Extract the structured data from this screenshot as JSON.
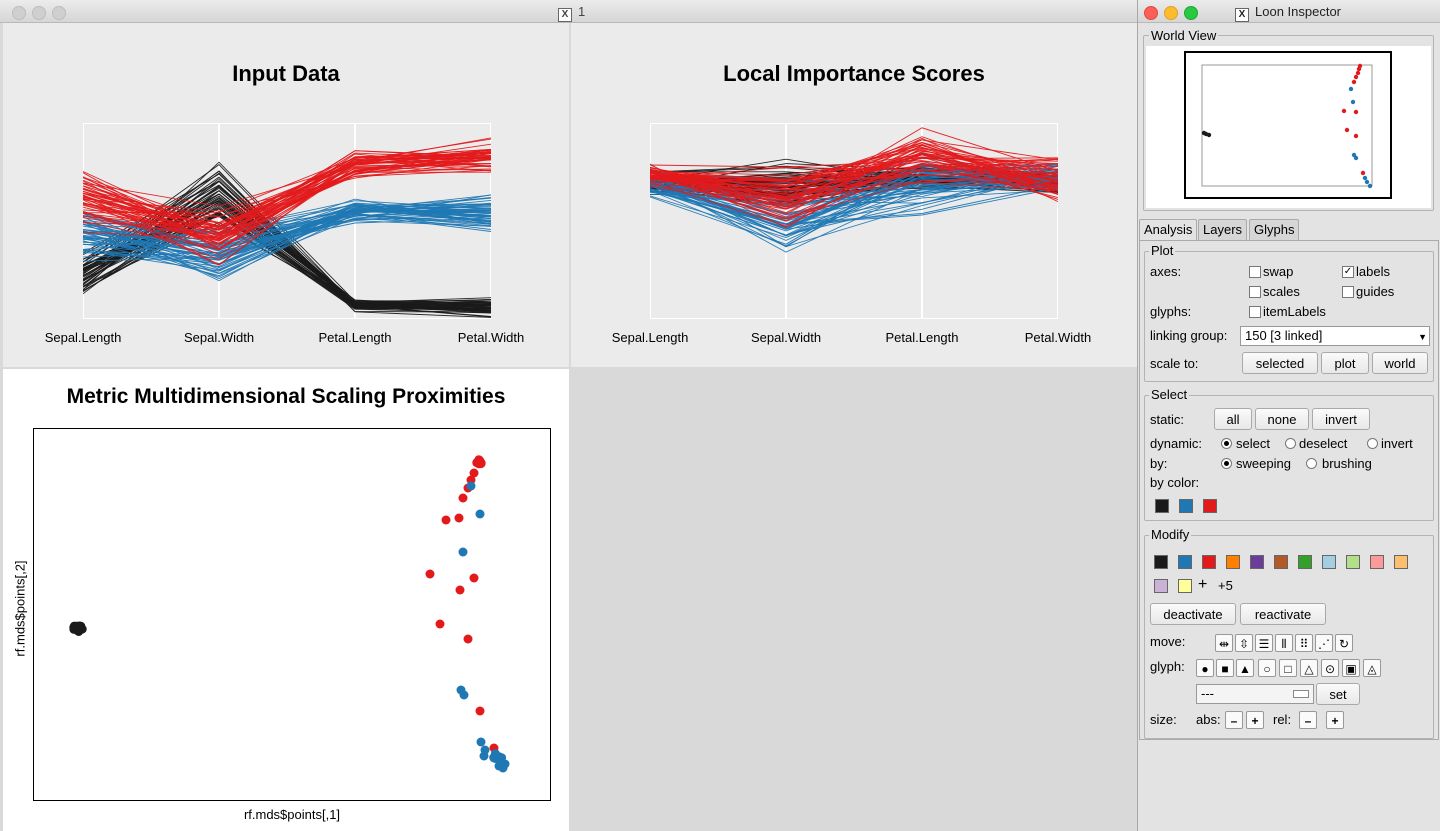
{
  "main_window": {
    "title": "1"
  },
  "plots": {
    "input": {
      "title": "Input Data",
      "axes": [
        "Sepal.Length",
        "Sepal.Width",
        "Petal.Length",
        "Petal.Width"
      ]
    },
    "importance": {
      "title": "Local Importance Scores",
      "axes": [
        "Sepal.Length",
        "Sepal.Width",
        "Petal.Length",
        "Petal.Width"
      ]
    },
    "mds": {
      "title": "Metric Multidimensional Scaling Proximities",
      "xlabel": "rf.mds$points[,1]",
      "ylabel": "rf.mds$points[,2]"
    }
  },
  "colors": {
    "black": "#1a1a1a",
    "blue": "#1f78b4",
    "red": "#e31a1c"
  },
  "inspector": {
    "title": "Loon Inspector",
    "world_view_label": "World View",
    "tabs": [
      "Analysis",
      "Layers",
      "Glyphs"
    ],
    "active_tab": "Analysis",
    "plot": {
      "label": "Plot",
      "axes_label": "axes:",
      "swap": "swap",
      "labels": "labels",
      "scales": "scales",
      "guides": "guides",
      "glyphs_label": "glyphs:",
      "item_labels": "itemLabels",
      "linking_group_label": "linking group:",
      "linking_group_value": "150  [3 linked]",
      "scale_to_label": "scale to:",
      "scale_buttons": [
        "selected",
        "plot",
        "world"
      ]
    },
    "select": {
      "label": "Select",
      "static_label": "static:",
      "static_buttons": [
        "all",
        "none",
        "invert"
      ],
      "dynamic_label": "dynamic:",
      "dynamic_options": [
        "select",
        "deselect",
        "invert"
      ],
      "by_label": "by:",
      "by_options": [
        "sweeping",
        "brushing"
      ],
      "by_color_label": "by color:",
      "by_color_swatches": [
        "#1a1a1a",
        "#1f78b4",
        "#e31a1c"
      ]
    },
    "modify": {
      "label": "Modify",
      "swatches": [
        "#1a1a1a",
        "#1f78b4",
        "#e31a1c",
        "#ff7f00",
        "#6a3d9a",
        "#b15928",
        "#33a02c",
        "#a6cee3",
        "#b2df8a",
        "#fb9a99",
        "#fdbf6f",
        "#cab2d6",
        "#ffff99"
      ],
      "plus_label": "+",
      "more_count": "+5",
      "deactivate": "deactivate",
      "reactivate": "reactivate",
      "move_label": "move:",
      "glyph_label": "glyph:",
      "glyph_select_value": "---",
      "set_button": "set",
      "size_label": "size:",
      "abs_label": "abs:",
      "rel_label": "rel:",
      "minus": "–",
      "plus": "+"
    }
  }
}
